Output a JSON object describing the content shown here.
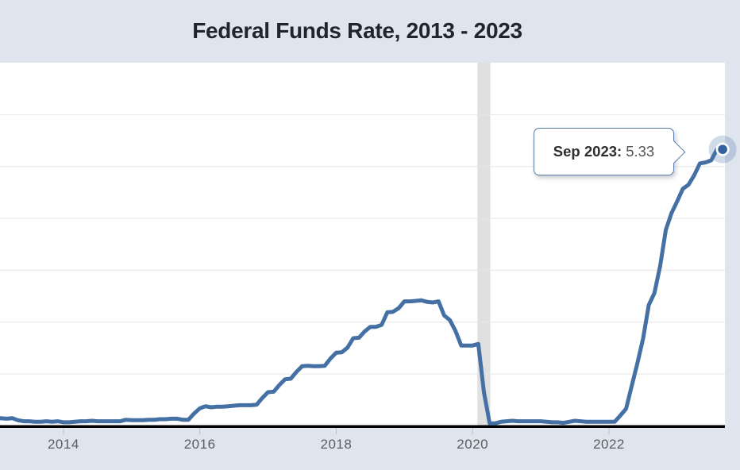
{
  "tooltip": {
    "label": "Sep 2023:",
    "value": "5.33"
  },
  "colors": {
    "page_background": "#dfe5ef",
    "plot_background": "#ffffff",
    "gridline": "#e6e6e6",
    "axis_line": "#000000",
    "tick": "#bfbfbf",
    "axis_label_text": "#5c5c5c",
    "title_text": "#21252b",
    "series_line": "#4470a4",
    "marker_fill": "#33609f",
    "marker_ring": "#ffffff",
    "marker_halo": "rgba(68,112,164,0.25)",
    "recession_band": "#e0e0e0",
    "tooltip_border": "#5e7da8"
  },
  "chart_data": {
    "type": "line",
    "title": "Federal Funds Rate, 2013 - 2023",
    "xlabel": "",
    "ylabel": "",
    "legend": "none",
    "grid": "horizontal",
    "frequency": "monthly",
    "start": "2013-01",
    "end": "2023-09",
    "xlim": [
      2013.07,
      2023.7
    ],
    "ylim": [
      0,
      7.0
    ],
    "y_gridline_step": 1,
    "x_ticks": [
      {
        "value": 2014,
        "label": "2014"
      },
      {
        "value": 2016,
        "label": "2016"
      },
      {
        "value": 2018,
        "label": "2018"
      },
      {
        "value": 2020,
        "label": "2020"
      },
      {
        "value": 2022,
        "label": "2022"
      }
    ],
    "series": [
      {
        "name": "Federal Funds Rate (%)",
        "start_year": 2013,
        "start_month": 1,
        "values": [
          0.14,
          0.15,
          0.14,
          0.15,
          0.11,
          0.09,
          0.09,
          0.08,
          0.08,
          0.09,
          0.08,
          0.09,
          0.07,
          0.07,
          0.08,
          0.09,
          0.09,
          0.1,
          0.09,
          0.09,
          0.09,
          0.09,
          0.09,
          0.12,
          0.11,
          0.11,
          0.11,
          0.12,
          0.12,
          0.13,
          0.13,
          0.14,
          0.14,
          0.12,
          0.12,
          0.24,
          0.34,
          0.38,
          0.36,
          0.37,
          0.37,
          0.38,
          0.39,
          0.4,
          0.4,
          0.4,
          0.41,
          0.54,
          0.65,
          0.66,
          0.79,
          0.9,
          0.91,
          1.04,
          1.15,
          1.16,
          1.15,
          1.15,
          1.16,
          1.3,
          1.41,
          1.42,
          1.51,
          1.69,
          1.7,
          1.82,
          1.91,
          1.91,
          1.95,
          2.19,
          2.2,
          2.27,
          2.4,
          2.4,
          2.41,
          2.42,
          2.39,
          2.38,
          2.4,
          2.13,
          2.04,
          1.83,
          1.55,
          1.55,
          1.55,
          1.58,
          0.65,
          0.05,
          0.05,
          0.08,
          0.09,
          0.1,
          0.09,
          0.09,
          0.09,
          0.09,
          0.09,
          0.08,
          0.07,
          0.07,
          0.06,
          0.08,
          0.1,
          0.09,
          0.08,
          0.08,
          0.08,
          0.08,
          0.08,
          0.08,
          0.2,
          0.33,
          0.77,
          1.21,
          1.68,
          2.33,
          2.56,
          3.08,
          3.78,
          4.1,
          4.33,
          4.57,
          4.65,
          4.83,
          5.06,
          5.08,
          5.12,
          5.33,
          5.33
        ]
      }
    ],
    "highlighted_point": {
      "label": "Sep 2023",
      "value": 5.33
    },
    "annotations": [
      {
        "type": "vertical-band",
        "from_x": 2020.07,
        "to_x": 2020.26
      }
    ]
  }
}
